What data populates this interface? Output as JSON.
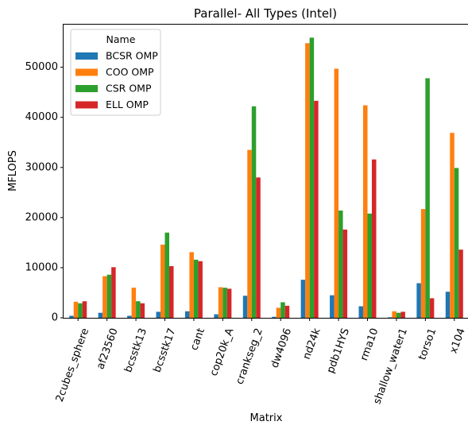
{
  "chart_data": {
    "type": "bar",
    "title": "Parallel- All Types (Intel)",
    "xlabel": "Matrix",
    "ylabel": "MFLOPS",
    "ylim": [
      0,
      58500
    ],
    "yticks": [
      0,
      10000,
      20000,
      30000,
      40000,
      50000
    ],
    "legend_title": "Name",
    "legend_position": "top-left",
    "grid": false,
    "categories": [
      "2cubes_sphere",
      "af23560",
      "bcsstk13",
      "bcsstk17",
      "cant",
      "cop20k_A",
      "crankseg_2",
      "dw4096",
      "nd24k",
      "pdb1HYS",
      "rma10",
      "shallow_water1",
      "torso1",
      "x104"
    ],
    "series": [
      {
        "name": "BCSR OMP",
        "color": "#1f77b4",
        "values": [
          400,
          1000,
          400,
          1200,
          1300,
          700,
          4400,
          200,
          7600,
          4500,
          2300,
          100,
          6900,
          5200
        ]
      },
      {
        "name": "COO OMP",
        "color": "#ff7f0e",
        "values": [
          3200,
          8300,
          6000,
          14600,
          13100,
          6100,
          33500,
          2000,
          54800,
          49700,
          42400,
          1300,
          21700,
          36900
        ]
      },
      {
        "name": "CSR OMP",
        "color": "#2ca02c",
        "values": [
          2900,
          8600,
          3300,
          17000,
          11600,
          6000,
          42200,
          3100,
          55900,
          21400,
          20800,
          1000,
          47800,
          29900
        ]
      },
      {
        "name": "ELL OMP",
        "color": "#d62728",
        "values": [
          3300,
          10100,
          2900,
          10300,
          11300,
          5800,
          28000,
          2400,
          43300,
          17600,
          31600,
          1200,
          3900,
          13600
        ]
      }
    ]
  }
}
